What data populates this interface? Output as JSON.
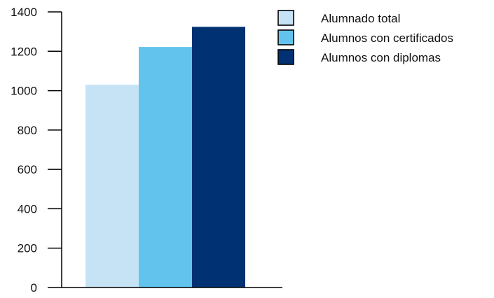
{
  "chart_data": {
    "type": "bar",
    "categories": [
      ""
    ],
    "series": [
      {
        "name": "Alumnado total",
        "values": [
          1030
        ],
        "color": "#c5e3f5"
      },
      {
        "name": "Alumnos con certificados",
        "values": [
          1222
        ],
        "color": "#62c4ec"
      },
      {
        "name": "Alumnos con diplomas",
        "values": [
          1324
        ],
        "color": "#003273"
      }
    ],
    "ylim": [
      0,
      1400
    ],
    "yticks": [
      0,
      200,
      400,
      600,
      800,
      1000,
      1200,
      1400
    ],
    "ytick_labels": [
      "0",
      "200",
      "400",
      "600",
      "800",
      "1000",
      "1200",
      "1400"
    ],
    "grid": false,
    "legend_position": "top-right",
    "title": "",
    "xlabel": "",
    "ylabel": ""
  }
}
